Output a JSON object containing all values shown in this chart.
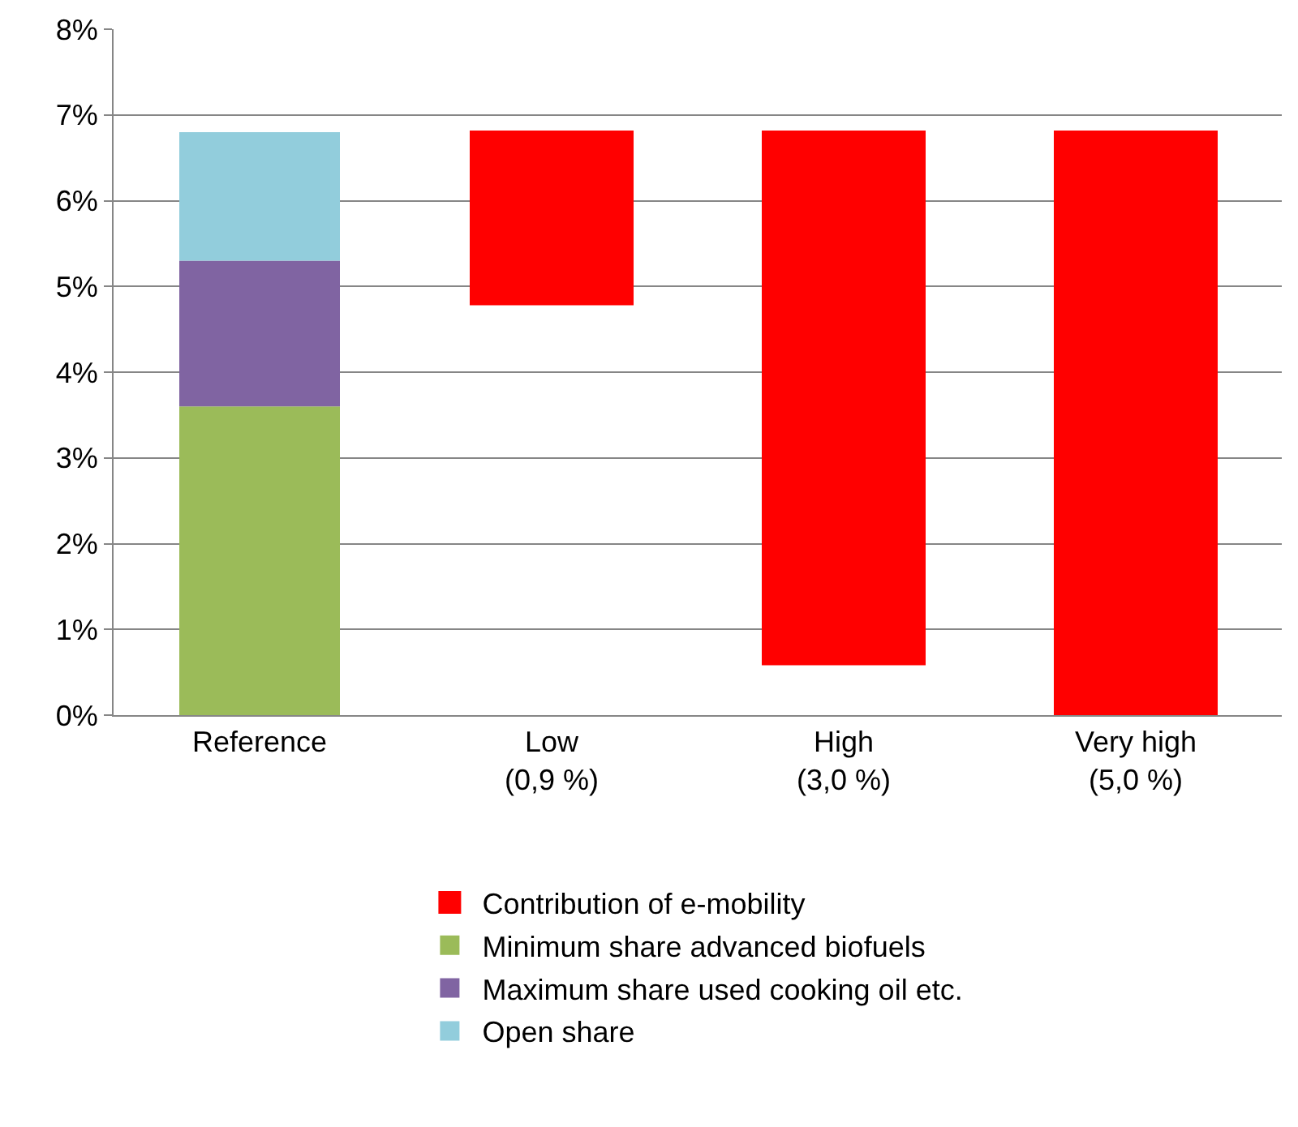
{
  "chart_data": {
    "type": "bar",
    "stacked": true,
    "categories": [
      "Reference",
      "Low\n(0,9 %)",
      "High\n(3,0 %)",
      "Very high\n(5,0 %)"
    ],
    "series": [
      {
        "name": "Contribution of e-mobility",
        "color": "#ff0000",
        "values": [
          null,
          2.0,
          6.2,
          6.8
        ],
        "base": [
          null,
          4.8,
          0.6,
          0
        ]
      },
      {
        "name": "Minimum share advanced biofuels",
        "color": "#9bbb59",
        "values": [
          3.6,
          null,
          null,
          null
        ]
      },
      {
        "name": "Maximum share used cooking oil etc.",
        "color": "#8064a2",
        "values": [
          1.7,
          null,
          null,
          null
        ]
      },
      {
        "name": "Open share",
        "color": "#92cddc",
        "values": [
          1.5,
          null,
          null,
          null
        ]
      }
    ],
    "ylim": [
      0,
      8
    ],
    "yticks": [
      {
        "value": 0,
        "label": "0%"
      },
      {
        "value": 1,
        "label": "1%"
      },
      {
        "value": 2,
        "label": "2%"
      },
      {
        "value": 3,
        "label": "3%"
      },
      {
        "value": 4,
        "label": "4%"
      },
      {
        "value": 5,
        "label": "5%"
      },
      {
        "value": 6,
        "label": "6%"
      },
      {
        "value": 7,
        "label": "7%"
      },
      {
        "value": 8,
        "label": "8%"
      }
    ],
    "grid": "y",
    "legend": "bottom"
  }
}
